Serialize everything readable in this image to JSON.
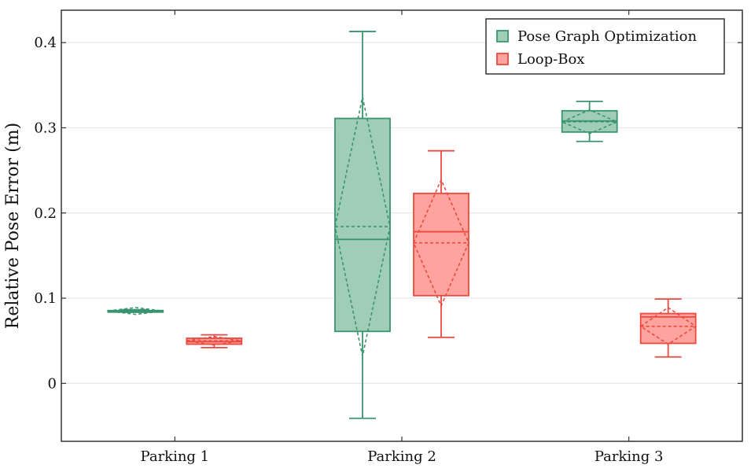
{
  "chart_data": {
    "type": "box",
    "ylabel": "Relative Pose Error (m)",
    "ylim": [
      -0.068,
      0.438
    ],
    "yticks": [
      0,
      0.1,
      0.2,
      0.3,
      0.4
    ],
    "ytick_labels": [
      "0",
      "0.1",
      "0.2",
      "0.3",
      "0.4"
    ],
    "categories": [
      "Parking 1",
      "Parking 2",
      "Parking 3"
    ],
    "grid": "horizontal",
    "legend_position": "top-right",
    "series": [
      {
        "name": "Pose Graph Optimization",
        "stroke": "#3a9470",
        "fill": "#9fcdb5",
        "boxes": [
          {
            "min": 0.0835,
            "q1": 0.0845,
            "median": 0.085,
            "mean": 0.085,
            "q3": 0.0855,
            "max": 0.0865,
            "sd_low": 0.081,
            "sd_high": 0.089
          },
          {
            "min": -0.041,
            "q1": 0.061,
            "median": 0.169,
            "mean": 0.184,
            "q3": 0.311,
            "max": 0.413,
            "sd_low": 0.032,
            "sd_high": 0.336
          },
          {
            "min": 0.284,
            "q1": 0.295,
            "median": 0.308,
            "mean": 0.307,
            "q3": 0.32,
            "max": 0.331,
            "sd_low": 0.293,
            "sd_high": 0.321
          }
        ]
      },
      {
        "name": "Loop-Box",
        "stroke": "#ec4a40",
        "fill": "#fea39d",
        "boxes": [
          {
            "min": 0.042,
            "q1": 0.046,
            "median": 0.049,
            "mean": 0.05,
            "q3": 0.053,
            "max": 0.057,
            "sd_low": 0.045,
            "sd_high": 0.055
          },
          {
            "min": 0.054,
            "q1": 0.103,
            "median": 0.178,
            "mean": 0.165,
            "q3": 0.223,
            "max": 0.273,
            "sd_low": 0.091,
            "sd_high": 0.239
          },
          {
            "min": 0.031,
            "q1": 0.047,
            "median": 0.078,
            "mean": 0.067,
            "q3": 0.082,
            "max": 0.099,
            "sd_low": 0.046,
            "sd_high": 0.089
          }
        ]
      }
    ]
  }
}
